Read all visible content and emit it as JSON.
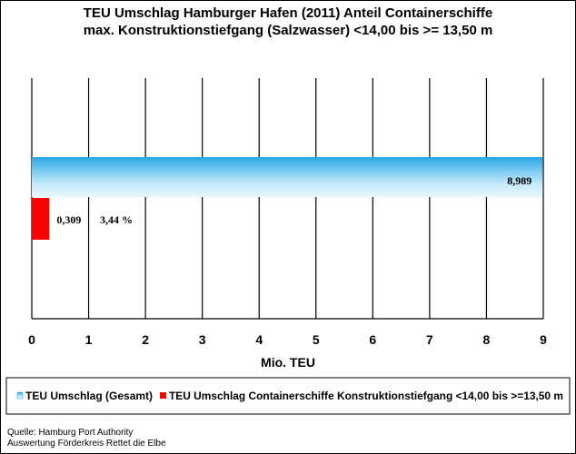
{
  "chart_data": {
    "type": "bar",
    "orientation": "horizontal",
    "title": [
      "TEU Umschlag Hamburger Hafen (2011) Anteil Containerschiffe",
      "max. Konstruktionstiefgang (Salzwasser) <14,00 bis >= 13,50 m"
    ],
    "xlabel": "Mio. TEU",
    "xlim": [
      0,
      9
    ],
    "xticks": [
      "0",
      "1",
      "2",
      "3",
      "4",
      "5",
      "6",
      "7",
      "8",
      "9"
    ],
    "grid": "vertical",
    "legend_position": "bottom",
    "series": [
      {
        "name": "TEU Umschlag (Gesamt)",
        "value": 8.989,
        "label": "8,989",
        "color": "#3fb2e8"
      },
      {
        "name": "TEU Umschlag Containerschiffe Konstruktionstiefgang <14,00 bis >=13,50 m",
        "value": 0.309,
        "label": "0,309",
        "extra_label": "3,44 %",
        "color": "#ff0000"
      }
    ]
  },
  "source": {
    "line1": "Quelle: Hamburg Port Authority",
    "line2": "Auswertung Förderkreis Rettet die Elbe"
  }
}
